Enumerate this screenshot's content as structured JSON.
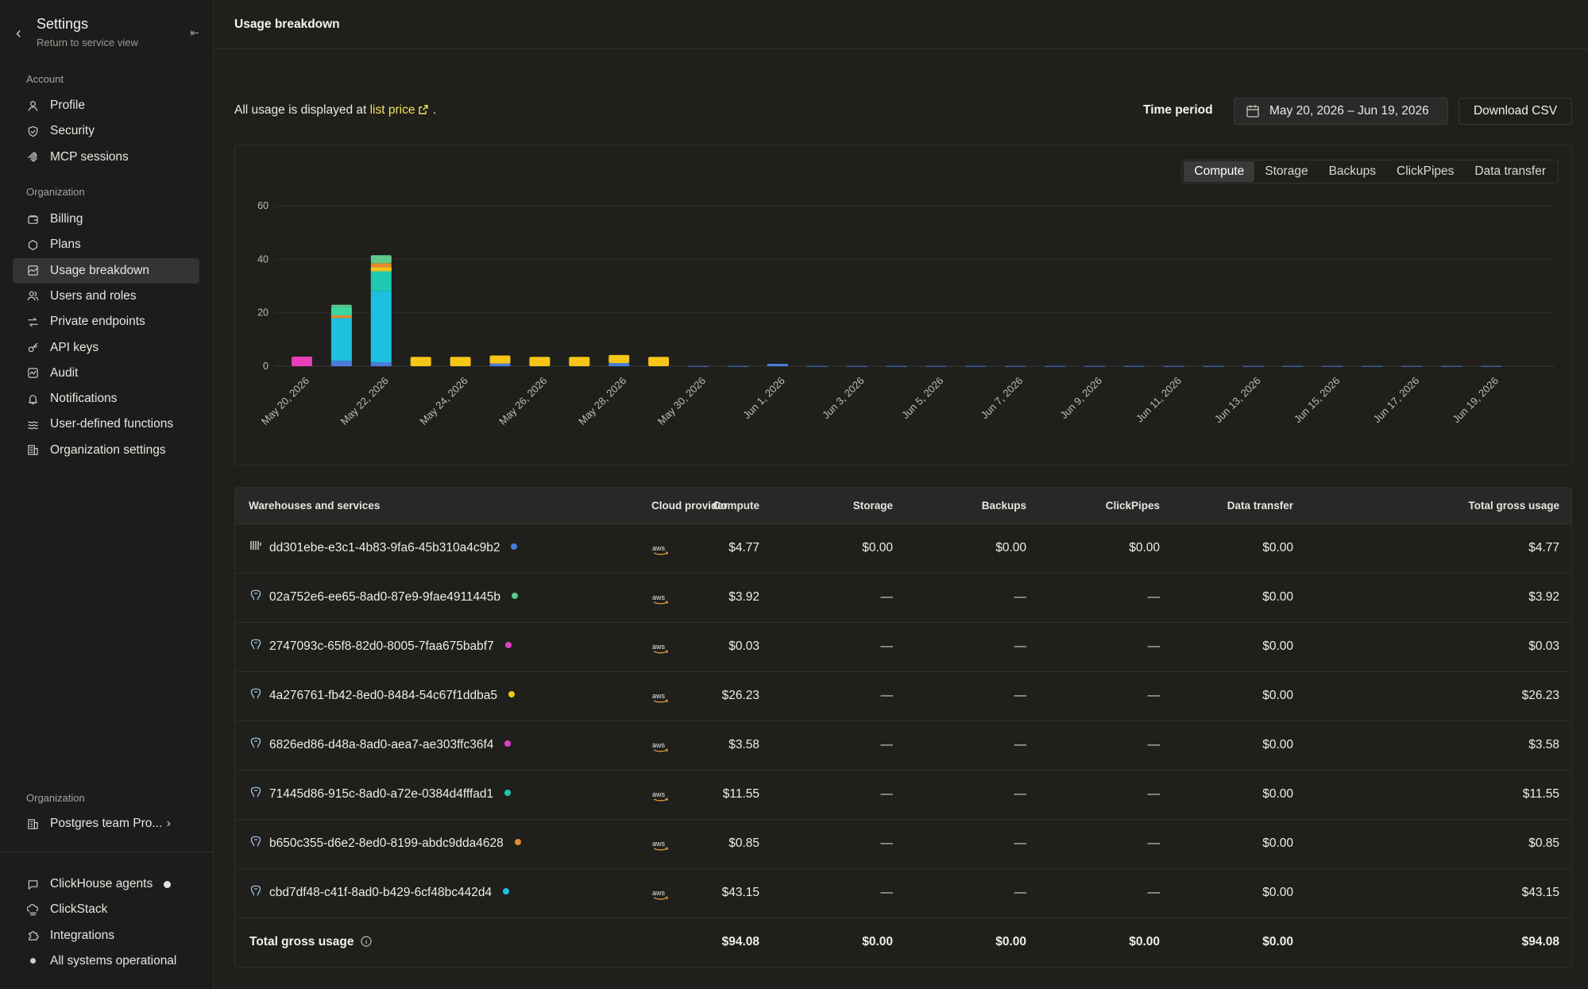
{
  "sidebar": {
    "title": "Settings",
    "subtitle": "Return to service view",
    "sections": {
      "account": "Account",
      "organization": "Organization",
      "organization_bottom": "Organization"
    },
    "account_items": [
      {
        "label": "Profile",
        "icon": "user-icon"
      },
      {
        "label": "Security",
        "icon": "shield-icon"
      },
      {
        "label": "MCP sessions",
        "icon": "mcp-icon"
      }
    ],
    "org_items": [
      {
        "label": "Billing",
        "icon": "wallet-icon"
      },
      {
        "label": "Plans",
        "icon": "hexagon-icon"
      },
      {
        "label": "Usage breakdown",
        "icon": "chart-icon",
        "active": true
      },
      {
        "label": "Users and roles",
        "icon": "users-icon"
      },
      {
        "label": "Private endpoints",
        "icon": "arrows-icon"
      },
      {
        "label": "API keys",
        "icon": "key-icon"
      },
      {
        "label": "Audit",
        "icon": "audit-icon"
      },
      {
        "label": "Notifications",
        "icon": "bell-icon"
      },
      {
        "label": "User-defined functions",
        "icon": "function-icon"
      },
      {
        "label": "Organization settings",
        "icon": "building-icon"
      }
    ],
    "org_switcher": "Postgres team Pro...",
    "bottom_items": [
      {
        "label": "ClickHouse agents",
        "icon": "chat-icon"
      },
      {
        "label": "ClickStack",
        "icon": "stack-icon"
      },
      {
        "label": "Integrations",
        "icon": "puzzle-icon"
      },
      {
        "label": "All systems operational",
        "icon": "status-dot"
      }
    ]
  },
  "header": {
    "title": "Usage breakdown"
  },
  "intro": {
    "text": "All usage is displayed at ",
    "link": "list price",
    "suffix": "."
  },
  "time_period": {
    "label": "Time period",
    "value": "May 20, 2026 – Jun 19, 2026"
  },
  "download_label": "Download CSV",
  "tabs": [
    "Compute",
    "Storage",
    "Backups",
    "ClickPipes",
    "Data transfer"
  ],
  "colors": {
    "blue": "#4a7bdc",
    "green": "#5ec98a",
    "pink": "#e93fb8",
    "yellow": "#f5c518",
    "magenta": "#e040c8",
    "teal": "#1fc8b0",
    "orange": "#e58a2e",
    "cyan": "#1ec0e0",
    "mint": "#3ed6a0"
  },
  "chart_data": {
    "type": "bar",
    "stacked": true,
    "yticks": [
      0,
      20,
      40,
      60
    ],
    "ylim": [
      0,
      60
    ],
    "xlabels": [
      "May 20, 2026",
      "May 22, 2026",
      "May 24, 2026",
      "May 26, 2026",
      "May 28, 2026",
      "May 30, 2026",
      "Jun 1, 2026",
      "Jun 3, 2026",
      "Jun 5, 2026",
      "Jun 7, 2026",
      "Jun 9, 2026",
      "Jun 11, 2026",
      "Jun 13, 2026",
      "Jun 15, 2026",
      "Jun 17, 2026",
      "Jun 19, 2026"
    ],
    "days": 31,
    "bars": [
      [
        {
          "v": 3.6,
          "c": "pink"
        }
      ],
      [
        {
          "v": 2.0,
          "c": "blue"
        },
        {
          "v": 16.0,
          "c": "cyan"
        },
        {
          "v": 1.0,
          "c": "orange"
        },
        {
          "v": 3.0,
          "c": "mint"
        },
        {
          "v": 1.0,
          "c": "green"
        }
      ],
      [
        {
          "v": 1.5,
          "c": "blue"
        },
        {
          "v": 26.5,
          "c": "cyan"
        },
        {
          "v": 7.5,
          "c": "teal"
        },
        {
          "v": 1.5,
          "c": "yellow"
        },
        {
          "v": 1.5,
          "c": "orange"
        },
        {
          "v": 3.0,
          "c": "green"
        }
      ],
      [
        {
          "v": 3.5,
          "c": "yellow"
        }
      ],
      [
        {
          "v": 3.5,
          "c": "yellow"
        }
      ],
      [
        {
          "v": 1.0,
          "c": "blue"
        },
        {
          "v": 3.0,
          "c": "yellow"
        }
      ],
      [
        {
          "v": 3.5,
          "c": "yellow"
        }
      ],
      [
        {
          "v": 3.5,
          "c": "yellow"
        }
      ],
      [
        {
          "v": 1.2,
          "c": "blue"
        },
        {
          "v": 3.0,
          "c": "yellow"
        }
      ],
      [
        {
          "v": 3.5,
          "c": "yellow"
        }
      ],
      [
        {
          "v": 0.1,
          "c": "blue"
        }
      ],
      [
        {
          "v": 0.1,
          "c": "blue"
        }
      ],
      [
        {
          "v": 0.9,
          "c": "blue"
        }
      ],
      [
        {
          "v": 0.1,
          "c": "blue"
        }
      ],
      [
        {
          "v": 0.1,
          "c": "blue"
        }
      ],
      [
        {
          "v": 0.1,
          "c": "blue"
        }
      ],
      [
        {
          "v": 0.1,
          "c": "blue"
        }
      ],
      [
        {
          "v": 0.1,
          "c": "blue"
        }
      ],
      [
        {
          "v": 0.1,
          "c": "blue"
        }
      ],
      [
        {
          "v": 0.1,
          "c": "blue"
        }
      ],
      [
        {
          "v": 0.1,
          "c": "blue"
        }
      ],
      [
        {
          "v": 0.1,
          "c": "blue"
        }
      ],
      [
        {
          "v": 0.1,
          "c": "blue"
        }
      ],
      [
        {
          "v": 0.1,
          "c": "blue"
        }
      ],
      [
        {
          "v": 0.1,
          "c": "blue"
        }
      ],
      [
        {
          "v": 0.1,
          "c": "blue"
        }
      ],
      [
        {
          "v": 0.1,
          "c": "blue"
        }
      ],
      [
        {
          "v": 0.1,
          "c": "blue"
        }
      ],
      [
        {
          "v": 0.1,
          "c": "blue"
        }
      ],
      [
        {
          "v": 0.1,
          "c": "blue"
        }
      ],
      [
        {
          "v": 0.1,
          "c": "blue"
        }
      ]
    ]
  },
  "table": {
    "headers": [
      "Warehouses and services",
      "Cloud provider",
      "Compute",
      "Storage",
      "Backups",
      "ClickPipes",
      "Data transfer",
      "Total gross usage"
    ],
    "rows": [
      {
        "name": "dd301ebe-e3c1-4b83-9fa6-45b310a4c9b2",
        "dot": "blue",
        "icon": "warehouse-icon",
        "provider": "aws",
        "compute": "$4.77",
        "storage": "$0.00",
        "backups": "$0.00",
        "clickpipes": "$0.00",
        "transfer": "$0.00",
        "total": "$4.77"
      },
      {
        "name": "02a752e6-ee65-8ad0-87e9-9fae4911445b",
        "dot": "green",
        "icon": "postgres-icon",
        "provider": "aws",
        "compute": "$3.92",
        "storage": "—",
        "backups": "—",
        "clickpipes": "—",
        "transfer": "$0.00",
        "total": "$3.92"
      },
      {
        "name": "2747093c-65f8-82d0-8005-7faa675babf7",
        "dot": "magenta",
        "icon": "postgres-icon",
        "provider": "aws",
        "compute": "$0.03",
        "storage": "—",
        "backups": "—",
        "clickpipes": "—",
        "transfer": "$0.00",
        "total": "$0.03"
      },
      {
        "name": "4a276761-fb42-8ed0-8484-54c67f1ddba5",
        "dot": "yellow",
        "icon": "postgres-icon",
        "provider": "aws",
        "compute": "$26.23",
        "storage": "—",
        "backups": "—",
        "clickpipes": "—",
        "transfer": "$0.00",
        "total": "$26.23"
      },
      {
        "name": "6826ed86-d48a-8ad0-aea7-ae303ffc36f4",
        "dot": "magenta",
        "icon": "postgres-icon",
        "provider": "aws",
        "compute": "$3.58",
        "storage": "—",
        "backups": "—",
        "clickpipes": "—",
        "transfer": "$0.00",
        "total": "$3.58"
      },
      {
        "name": "71445d86-915c-8ad0-a72e-0384d4fffad1",
        "dot": "teal",
        "icon": "postgres-icon",
        "provider": "aws",
        "compute": "$11.55",
        "storage": "—",
        "backups": "—",
        "clickpipes": "—",
        "transfer": "$0.00",
        "total": "$11.55"
      },
      {
        "name": "b650c355-d6e2-8ed0-8199-abdc9dda4628",
        "dot": "orange",
        "icon": "postgres-icon",
        "provider": "aws",
        "compute": "$0.85",
        "storage": "—",
        "backups": "—",
        "clickpipes": "—",
        "transfer": "$0.00",
        "total": "$0.85"
      },
      {
        "name": "cbd7df48-c41f-8ad0-b429-6cf48bc442d4",
        "dot": "cyan",
        "icon": "postgres-icon",
        "provider": "aws",
        "compute": "$43.15",
        "storage": "—",
        "backups": "—",
        "clickpipes": "—",
        "transfer": "$0.00",
        "total": "$43.15"
      }
    ],
    "total": {
      "label": "Total gross usage",
      "compute": "$94.08",
      "storage": "$0.00",
      "backups": "$0.00",
      "clickpipes": "$0.00",
      "transfer": "$0.00",
      "total": "$94.08"
    }
  }
}
